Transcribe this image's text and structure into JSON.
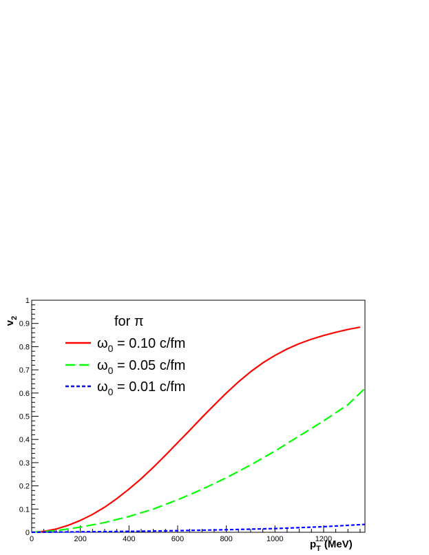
{
  "chart_data": {
    "type": "line",
    "title": "",
    "xlabel_main": "p",
    "xlabel_sub": "T",
    "xlabel_unit": "(MeV)",
    "ylabel_main": "v",
    "ylabel_sub": "2",
    "xlim": [
      0,
      1370
    ],
    "ylim": [
      0,
      1
    ],
    "x_ticks": [
      0,
      200,
      400,
      600,
      800,
      1000,
      1200
    ],
    "y_ticks": [
      0,
      0.1,
      0.2,
      0.3,
      0.4,
      0.5,
      0.6,
      0.7,
      0.8,
      0.9,
      1
    ],
    "y_tick_labels": [
      "0",
      "0.1",
      "0.2",
      "0.3",
      "0.4",
      "0.5",
      "0.6",
      "0.7",
      "0.8",
      "0.9",
      "1"
    ],
    "grid": false,
    "legend_position": "top-left",
    "legend_header": "for π",
    "series": [
      {
        "name_main": "ω",
        "name_sub": "0",
        "name_rest": " = 0.10 c/fm",
        "color": "#ff0000",
        "dash": "solid",
        "x": [
          0,
          50,
          100,
          150,
          200,
          250,
          300,
          350,
          400,
          450,
          500,
          550,
          600,
          650,
          700,
          750,
          800,
          850,
          900,
          950,
          1000,
          1050,
          1100,
          1150,
          1200,
          1250,
          1300,
          1350
        ],
        "y": [
          0.0,
          0.004,
          0.014,
          0.03,
          0.051,
          0.077,
          0.108,
          0.145,
          0.186,
          0.231,
          0.28,
          0.332,
          0.386,
          0.44,
          0.495,
          0.548,
          0.6,
          0.648,
          0.692,
          0.73,
          0.762,
          0.79,
          0.813,
          0.832,
          0.848,
          0.862,
          0.874,
          0.884
        ]
      },
      {
        "name_main": "ω",
        "name_sub": "0",
        "name_rest": " = 0.05 c/fm",
        "color": "#00ff00",
        "dash": "long-dash",
        "x": [
          0,
          100,
          200,
          300,
          400,
          500,
          600,
          700,
          800,
          900,
          1000,
          1100,
          1200,
          1300,
          1370
        ],
        "y": [
          0.0,
          0.007,
          0.022,
          0.042,
          0.068,
          0.1,
          0.14,
          0.185,
          0.235,
          0.29,
          0.35,
          0.415,
          0.48,
          0.55,
          0.62
        ]
      },
      {
        "name_main": "ω",
        "name_sub": "0",
        "name_rest": " = 0.01 c/fm",
        "color": "#0000ff",
        "dash": "short-dash",
        "x": [
          0,
          200,
          400,
          600,
          800,
          1000,
          1200,
          1370
        ],
        "y": [
          0.0,
          0.002,
          0.004,
          0.007,
          0.011,
          0.016,
          0.024,
          0.034
        ]
      }
    ]
  }
}
